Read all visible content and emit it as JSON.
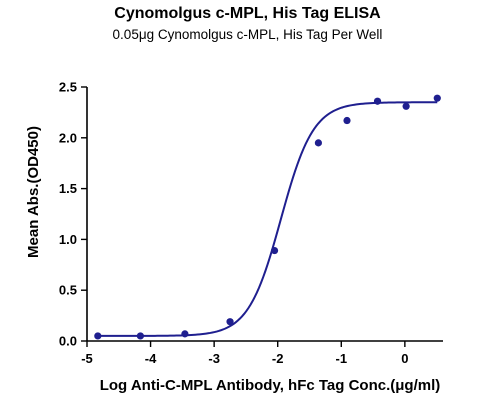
{
  "chart_data": {
    "type": "scatter",
    "title": "Cynomolgus c-MPL, His Tag ELISA",
    "subtitle": "0.05μg Cynomolgus c-MPL, His Tag Per Well",
    "xlabel": "Log Anti-C-MPL Antibody, hFc Tag Conc.(μg/ml)",
    "ylabel": "Mean Abs.(OD450)",
    "xlim": [
      -5,
      0.6
    ],
    "ylim": [
      0,
      2.5
    ],
    "x_ticks": [
      "-5",
      "-4",
      "-3",
      "-2",
      "-1",
      "0"
    ],
    "y_ticks": [
      "0.0",
      "0.5",
      "1.0",
      "1.5",
      "2.0",
      "2.5"
    ],
    "x_tick_values": [
      -5,
      -4,
      -3,
      -2,
      -1,
      0
    ],
    "y_tick_values": [
      0,
      0.5,
      1.0,
      1.5,
      2.0,
      2.5
    ],
    "series": [
      {
        "x": [
          -4.83,
          -4.16,
          -3.46,
          -2.75,
          -2.05,
          -1.36,
          -0.91,
          -0.43,
          0.02,
          0.51
        ],
        "y": [
          0.05,
          0.05,
          0.07,
          0.19,
          0.89,
          1.95,
          2.17,
          2.36,
          2.31,
          2.39
        ]
      }
    ],
    "fit_curve": {
      "type": "4PL",
      "bottom": 0.05,
      "top": 2.35,
      "log_ec50": -1.95,
      "hill": 1.7
    },
    "grid": false,
    "color": "#1f1f8f"
  }
}
